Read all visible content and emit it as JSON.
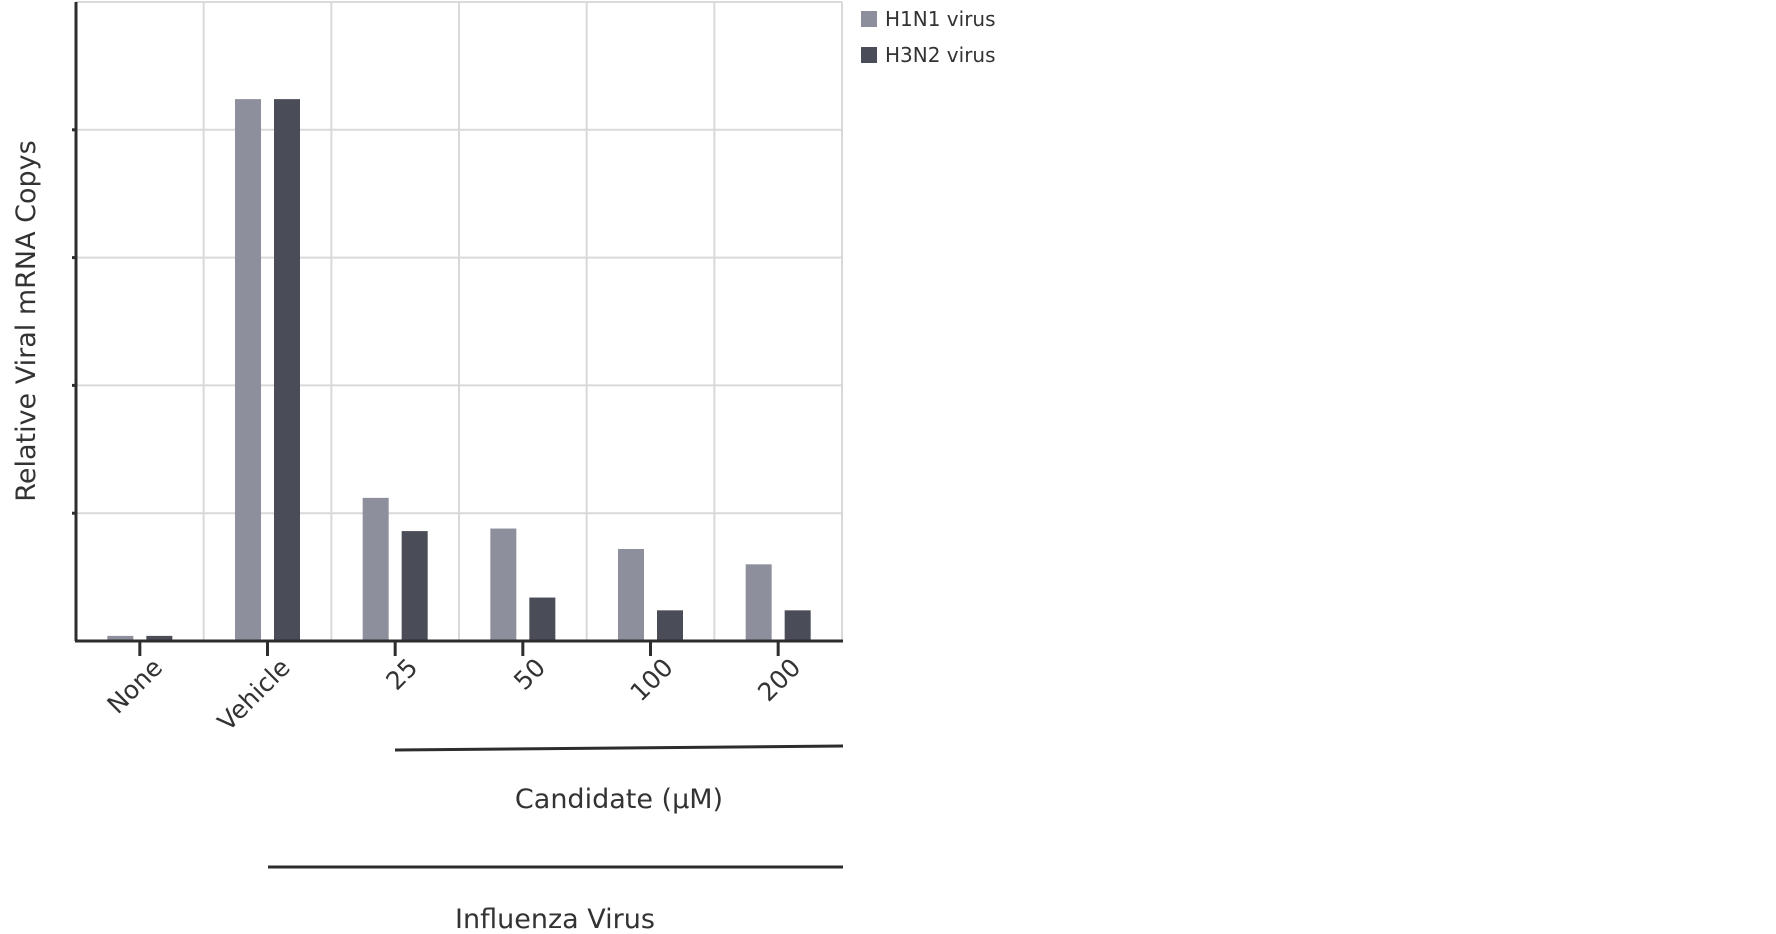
{
  "chart_data": {
    "type": "bar",
    "title": "",
    "xlabel": "",
    "ylabel": "Relative Viral mRNA Copys",
    "categories": [
      "None",
      "Vehicle",
      "25",
      "50",
      "100",
      "200"
    ],
    "series": [
      {
        "name": "H1N1 virus",
        "color": "#8e8f9c",
        "values": [
          0.2,
          21.2,
          5.6,
          4.4,
          3.6,
          3.0
        ]
      },
      {
        "name": "H3N2 virus",
        "color": "#4a4c57",
        "values": [
          0.2,
          21.2,
          4.3,
          1.7,
          1.2,
          1.2
        ]
      }
    ],
    "ylim": [
      0,
      25
    ],
    "grid": true,
    "legend_position": "top-right",
    "group_labels": {
      "candidate": "Candidate (μM)",
      "influenza": "Influenza Virus"
    }
  }
}
